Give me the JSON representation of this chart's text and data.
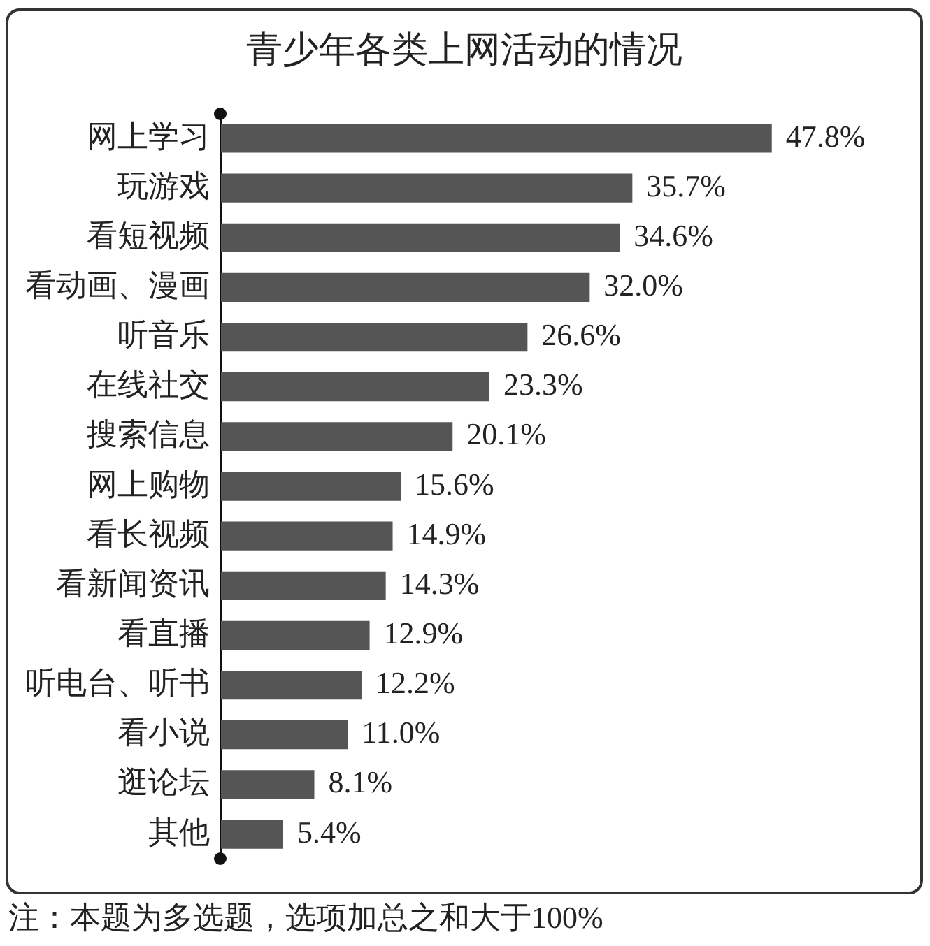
{
  "chart_data": {
    "type": "bar",
    "orientation": "horizontal",
    "title": "青少年各类上网活动的情况",
    "categories": [
      "网上学习",
      "玩游戏",
      "看短视频",
      "看动画、漫画",
      "听音乐",
      "在线社交",
      "搜索信息",
      "网上购物",
      "看长视频",
      "看新闻资讯",
      "看直播",
      "听电台、听书",
      "看小说",
      "逛论坛",
      "其他"
    ],
    "values": [
      47.8,
      35.7,
      34.6,
      32.0,
      26.6,
      23.3,
      20.1,
      15.6,
      14.9,
      14.3,
      12.9,
      12.2,
      11.0,
      8.1,
      5.4
    ],
    "value_labels": [
      "47.8%",
      "35.7%",
      "34.6%",
      "32.0%",
      "26.6%",
      "23.3%",
      "20.1%",
      "15.6%",
      "14.9%",
      "14.3%",
      "12.9%",
      "12.2%",
      "11.0%",
      "8.1%",
      "5.4%"
    ],
    "color": "#555555",
    "annotations": [
      "注：本题为多选题，选项加总之和大于100%"
    ]
  }
}
